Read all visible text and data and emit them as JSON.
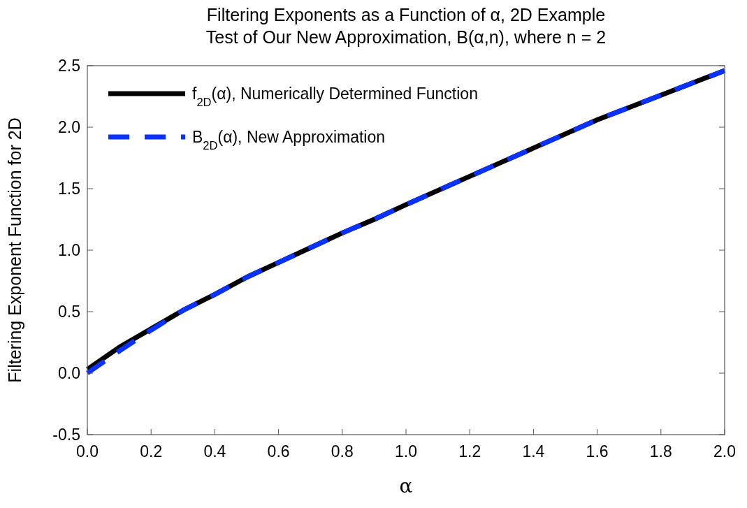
{
  "chart_data": {
    "type": "line",
    "title": "Filtering Exponents as a Function of α, 2D Example",
    "subtitle": "Test of Our New Approximation, B(α,n), where n = 2",
    "xlabel": "α",
    "ylabel": "Filtering Exponent Function for 2D",
    "x": [
      0,
      0.1,
      0.2,
      0.3,
      0.4,
      0.5,
      0.6,
      0.7,
      0.8,
      0.9,
      1.0,
      1.2,
      1.4,
      1.6,
      1.8,
      2.0
    ],
    "series": [
      {
        "name": "f$_{2D}$(α), Numerically Determined Function",
        "color": "#000000",
        "line_style": "solid",
        "values": [
          0.03,
          0.21,
          0.36,
          0.51,
          0.64,
          0.78,
          0.9,
          1.02,
          1.14,
          1.25,
          1.37,
          1.6,
          1.83,
          2.06,
          2.26,
          2.46
        ]
      },
      {
        "name": "B$_{2D}$(α), New Approximation",
        "color": "#0a32ff",
        "line_style": "dashed",
        "values": [
          0.0,
          0.18,
          0.35,
          0.51,
          0.64,
          0.78,
          0.9,
          1.02,
          1.14,
          1.25,
          1.37,
          1.6,
          1.83,
          2.06,
          2.26,
          2.46
        ]
      }
    ],
    "xlim": [
      0,
      2
    ],
    "xticks": [
      {
        "value": 0,
        "label": "0.0"
      },
      0.2,
      0.4,
      0.6,
      0.8,
      {
        "value": 1,
        "label": "1.0"
      },
      1.2,
      1.4,
      1.6,
      1.8,
      {
        "value": 2,
        "label": "2.0"
      }
    ],
    "ylim": [
      -0.5,
      2.5
    ],
    "yticks": [
      -0.5,
      {
        "value": 0,
        "label": "0.0"
      },
      0.5,
      {
        "value": 1,
        "label": "1.0"
      },
      1.5,
      {
        "value": 2,
        "label": "2.0"
      },
      2.5
    ],
    "grid": false,
    "legend": "top left"
  }
}
